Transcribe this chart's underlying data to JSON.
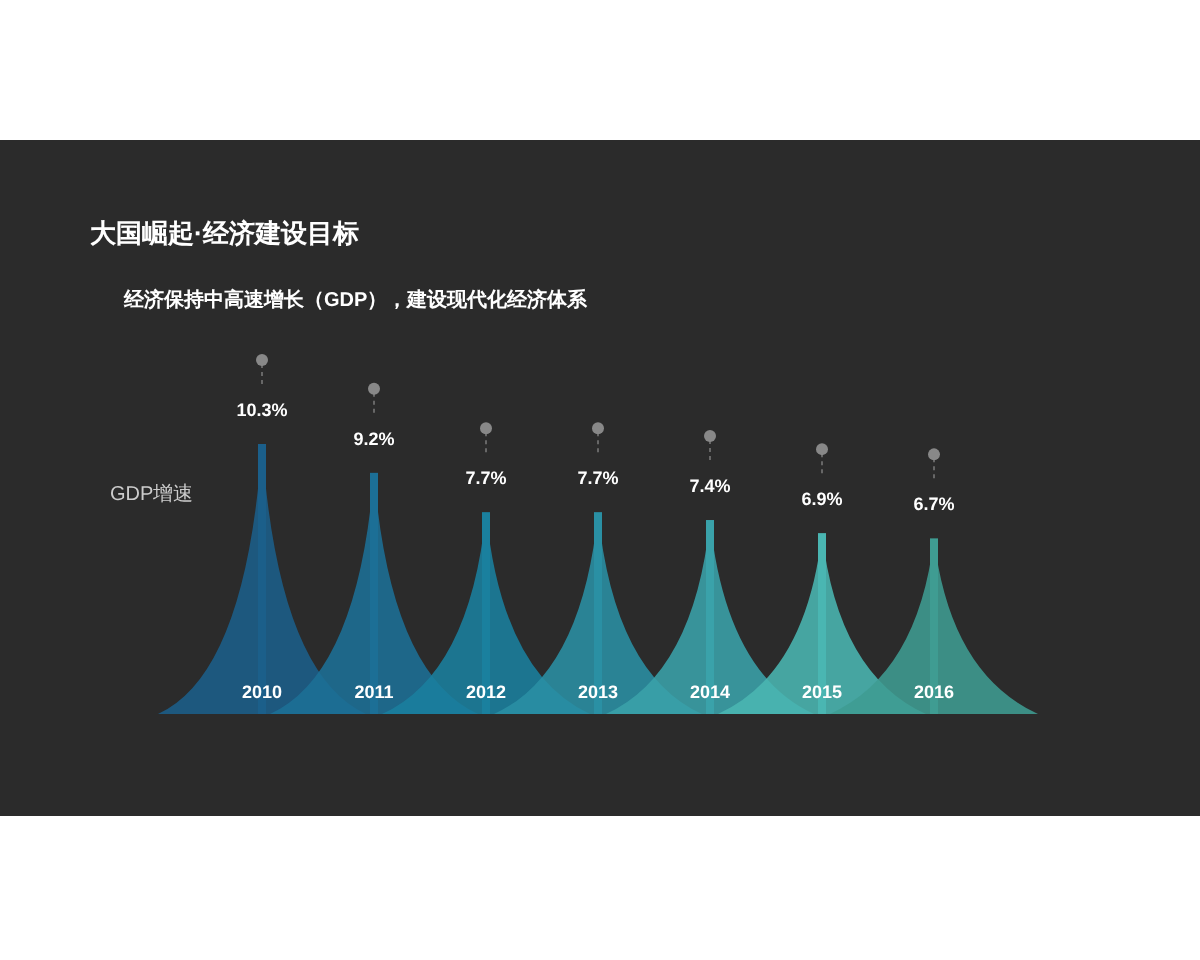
{
  "chart_data": {
    "type": "bar",
    "title": "大国崛起·经济建设目标",
    "subtitle": "经济保持中高速增长（GDP），建设现代化经济体系",
    "ylabel": "GDP增速",
    "categories": [
      "2010",
      "2011",
      "2012",
      "2013",
      "2014",
      "2015",
      "2016"
    ],
    "values": [
      10.3,
      9.2,
      7.7,
      7.7,
      7.4,
      6.9,
      6.7
    ],
    "value_labels": [
      "10.3%",
      "9.2%",
      "7.7%",
      "7.7%",
      "7.4%",
      "6.9%",
      "6.7%"
    ],
    "colors": [
      "#1b5f8a",
      "#1c6f96",
      "#1a809e",
      "#2a90a4",
      "#3aa2aa",
      "#4ab6b2",
      "#3f9c92"
    ]
  }
}
